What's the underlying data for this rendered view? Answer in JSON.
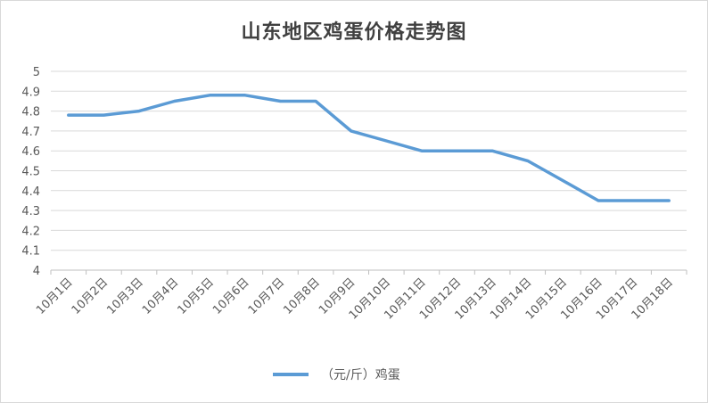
{
  "chart_data": {
    "type": "line",
    "title": "山东地区鸡蛋价格走势图",
    "categories": [
      "10月1日",
      "10月2日",
      "10月3日",
      "10月4日",
      "10月5日",
      "10月6日",
      "10月7日",
      "10月8日",
      "10月9日",
      "10月10日",
      "10月11日",
      "10月12日",
      "10月13日",
      "10月14日",
      "10月15日",
      "10月16日",
      "10月17日",
      "10月18日"
    ],
    "series": [
      {
        "name": "（元/斤）鸡蛋",
        "values": [
          4.78,
          4.78,
          4.8,
          4.85,
          4.88,
          4.88,
          4.85,
          4.85,
          4.7,
          4.65,
          4.6,
          4.6,
          4.6,
          4.55,
          4.45,
          4.35,
          4.35,
          4.35
        ],
        "color": "#5b9bd5"
      }
    ],
    "yticks": [
      "4",
      "4.1",
      "4.2",
      "4.3",
      "4.4",
      "4.5",
      "4.6",
      "4.7",
      "4.8",
      "4.9",
      "5"
    ],
    "ylim": [
      4,
      5
    ],
    "grid": true,
    "legend": "bottom"
  }
}
